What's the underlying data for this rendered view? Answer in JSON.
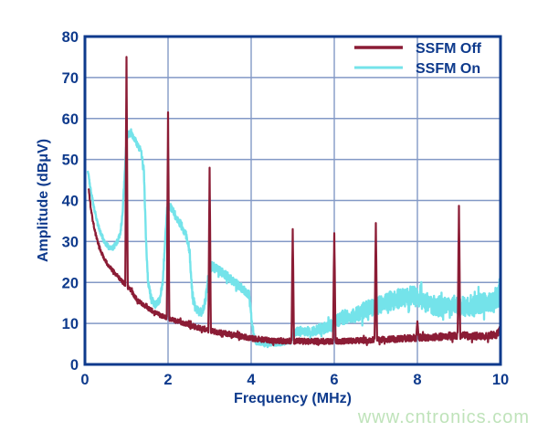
{
  "page": {
    "background": "#ffffff"
  },
  "watermark": {
    "text": "www.cntronics.com",
    "color": "#bfe3ba"
  },
  "chart_data": {
    "type": "line",
    "title": "",
    "xlabel": "Frequency (MHz)",
    "ylabel": "Amplitude (dBμV)",
    "xlim": [
      0,
      10
    ],
    "ylim": [
      0,
      80
    ],
    "xticks": [
      0,
      2,
      4,
      6,
      8,
      10
    ],
    "yticks": [
      0,
      10,
      20,
      30,
      40,
      50,
      60,
      70,
      80
    ],
    "grid": true,
    "legend_position": "top-right",
    "colors": {
      "axis": "#0e3a8c",
      "grid": "#8399c6",
      "background": "#ffffff",
      "ssfm_off": "#8b1c35",
      "ssfm_on": "#74e3ea",
      "watermark": "#bfe3ba"
    },
    "series": [
      {
        "name": "SSFM Off",
        "color": "#8b1c35",
        "width": 2.2,
        "z": 2,
        "seed": 1337,
        "baseline": [
          [
            0.09,
            43
          ],
          [
            0.12,
            40
          ],
          [
            0.15,
            37.5
          ],
          [
            0.2,
            34.5
          ],
          [
            0.25,
            32.2
          ],
          [
            0.3,
            30.2
          ],
          [
            0.4,
            27.2
          ],
          [
            0.5,
            25.2
          ],
          [
            0.6,
            23.7
          ],
          [
            0.7,
            22.5
          ],
          [
            0.8,
            21.3
          ],
          [
            0.9,
            20.2
          ],
          [
            1.0,
            19.2
          ],
          [
            1.1,
            18.2
          ],
          [
            1.25,
            15.8
          ],
          [
            1.4,
            14.6
          ],
          [
            1.6,
            13.2
          ],
          [
            1.8,
            12.1
          ],
          [
            2.0,
            11.2
          ],
          [
            2.2,
            10.6
          ],
          [
            2.5,
            9.7
          ],
          [
            2.8,
            8.7
          ],
          [
            3.0,
            8.2
          ],
          [
            3.3,
            7.7
          ],
          [
            3.6,
            7.2
          ],
          [
            3.8,
            6.8
          ],
          [
            4.0,
            6.4
          ],
          [
            4.3,
            6.0
          ],
          [
            4.6,
            5.8
          ],
          [
            5.0,
            5.7
          ],
          [
            5.5,
            5.6
          ],
          [
            6.0,
            5.7
          ],
          [
            6.5,
            5.8
          ],
          [
            7.0,
            6.0
          ],
          [
            7.5,
            6.2
          ],
          [
            8.0,
            6.5
          ],
          [
            8.5,
            6.7
          ],
          [
            9.0,
            7.1
          ],
          [
            9.3,
            6.9
          ],
          [
            9.6,
            6.9
          ],
          [
            9.9,
            7.3
          ],
          [
            10.0,
            8.6
          ]
        ],
        "spikes": [
          [
            1.0,
            75
          ],
          [
            2.0,
            61.5
          ],
          [
            3.0,
            48
          ],
          [
            5.0,
            33
          ],
          [
            6.0,
            32
          ],
          [
            7.0,
            34.5
          ],
          [
            8.0,
            10.5
          ],
          [
            9.0,
            38.7
          ]
        ],
        "noise": [
          [
            0.09,
            0.45
          ],
          [
            1,
            0.5
          ],
          [
            3,
            0.6
          ],
          [
            5,
            0.7
          ],
          [
            7,
            0.7
          ],
          [
            8.8,
            0.9
          ],
          [
            10,
            0.9
          ]
        ]
      },
      {
        "name": "SSFM On",
        "color": "#74e3ea",
        "width": 2.4,
        "z": 1,
        "seed": 777,
        "baseline": [
          [
            0.07,
            47.5
          ],
          [
            0.1,
            45
          ],
          [
            0.15,
            42
          ],
          [
            0.2,
            39
          ],
          [
            0.3,
            34.5
          ],
          [
            0.4,
            31.5
          ],
          [
            0.5,
            29.5
          ],
          [
            0.6,
            28.3
          ],
          [
            0.7,
            28.8
          ],
          [
            0.8,
            30.5
          ],
          [
            0.85,
            32
          ],
          [
            0.9,
            36
          ],
          [
            0.95,
            45
          ],
          [
            1.0,
            55
          ],
          [
            1.05,
            56.5
          ],
          [
            1.15,
            55.8
          ],
          [
            1.25,
            53.8
          ],
          [
            1.35,
            52
          ],
          [
            1.42,
            47
          ],
          [
            1.47,
            30
          ],
          [
            1.52,
            20
          ],
          [
            1.6,
            15.8
          ],
          [
            1.7,
            14.5
          ],
          [
            1.8,
            15.8
          ],
          [
            1.87,
            20
          ],
          [
            1.93,
            30
          ],
          [
            1.98,
            38.5
          ],
          [
            2.05,
            38.5
          ],
          [
            2.15,
            36.8
          ],
          [
            2.3,
            34.3
          ],
          [
            2.45,
            31.3
          ],
          [
            2.52,
            27
          ],
          [
            2.58,
            17.5
          ],
          [
            2.65,
            14
          ],
          [
            2.75,
            12.9
          ],
          [
            2.85,
            13.6
          ],
          [
            2.92,
            17
          ],
          [
            2.98,
            22
          ],
          [
            3.05,
            24
          ],
          [
            3.3,
            22.5
          ],
          [
            3.6,
            20
          ],
          [
            3.85,
            18
          ],
          [
            3.95,
            17
          ],
          [
            4.02,
            10
          ],
          [
            4.1,
            5.4
          ],
          [
            4.4,
            5.0
          ],
          [
            4.7,
            5.1
          ],
          [
            4.95,
            5.6
          ],
          [
            5.05,
            7.8
          ],
          [
            5.2,
            8.2
          ],
          [
            5.45,
            8.0
          ],
          [
            5.7,
            8.8
          ],
          [
            5.9,
            9.3
          ],
          [
            6.05,
            10.4
          ],
          [
            6.2,
            11.5
          ],
          [
            6.45,
            11.8
          ],
          [
            6.7,
            13.2
          ],
          [
            6.9,
            13.8
          ],
          [
            7.1,
            14.5
          ],
          [
            7.35,
            15.5
          ],
          [
            7.6,
            16.2
          ],
          [
            7.85,
            16.8
          ],
          [
            8.05,
            16.2
          ],
          [
            8.25,
            14.8
          ],
          [
            8.5,
            14.2
          ],
          [
            8.75,
            14.6
          ],
          [
            9.0,
            14.4
          ],
          [
            9.2,
            14.0
          ],
          [
            9.45,
            14.8
          ],
          [
            9.7,
            15.0
          ],
          [
            9.85,
            15.2
          ],
          [
            9.95,
            16.5
          ],
          [
            10.0,
            20.5
          ]
        ],
        "spikes": [],
        "noise": [
          [
            0.07,
            0.5
          ],
          [
            0.95,
            0.7
          ],
          [
            1.45,
            0.8
          ],
          [
            2.0,
            0.9
          ],
          [
            3.0,
            1.1
          ],
          [
            3.95,
            1.0
          ],
          [
            4.1,
            0.5
          ],
          [
            4.9,
            0.5
          ],
          [
            5.1,
            1.0
          ],
          [
            5.8,
            1.3
          ],
          [
            6.3,
            1.8
          ],
          [
            6.9,
            2.1
          ],
          [
            7.5,
            2.4
          ],
          [
            8.2,
            2.5
          ],
          [
            10,
            2.5
          ]
        ]
      }
    ]
  }
}
